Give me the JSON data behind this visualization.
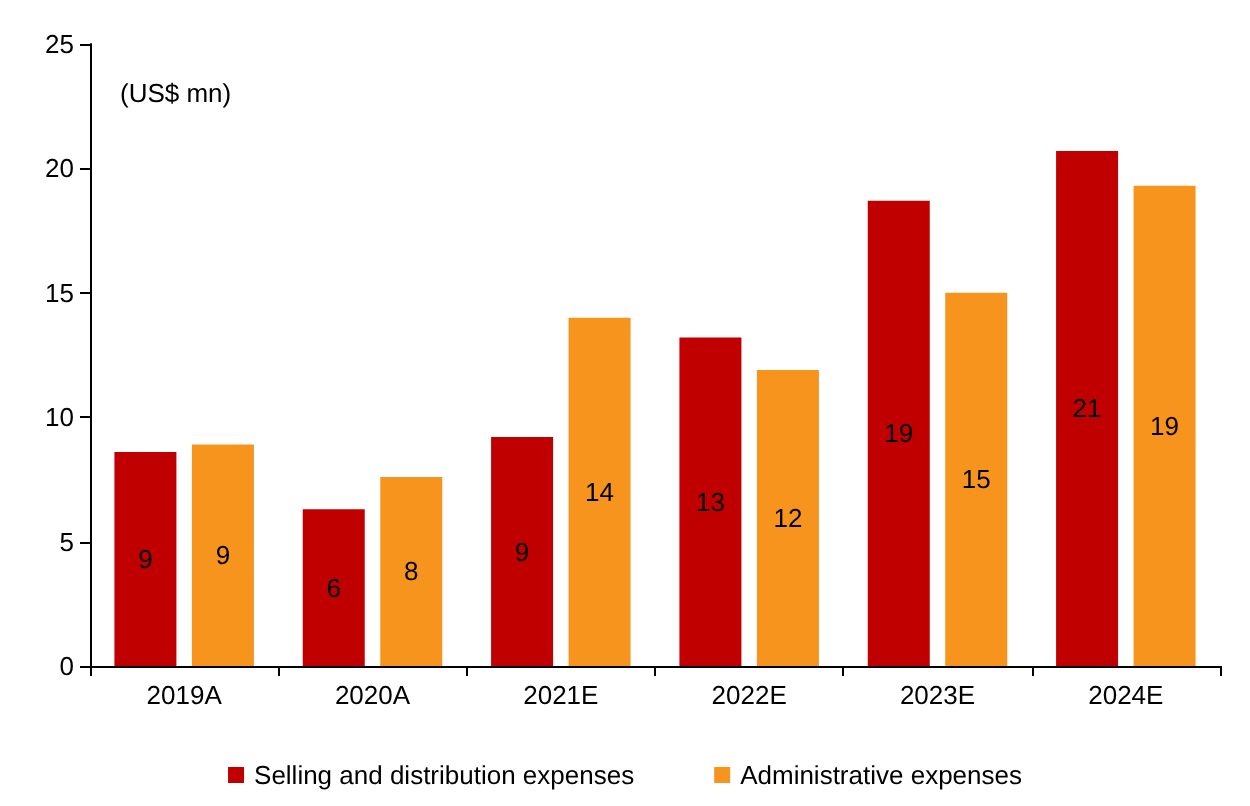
{
  "chart_data": {
    "type": "bar",
    "ylabel": "(US$ mn)",
    "categories": [
      "2019A",
      "2020A",
      "2021E",
      "2022E",
      "2023E",
      "2024E"
    ],
    "series": [
      {
        "name": "Selling and distribution expenses",
        "color": "#c00000",
        "values": [
          8.6,
          6.3,
          9.2,
          13.2,
          18.7,
          20.7
        ],
        "value_labels": [
          "9",
          "6",
          "9",
          "13",
          "19",
          "21"
        ]
      },
      {
        "name": "Administrative expenses",
        "color": "#f7941d",
        "values": [
          8.9,
          7.6,
          14.0,
          11.9,
          15.0,
          19.3
        ],
        "value_labels": [
          "9",
          "8",
          "14",
          "12",
          "15",
          "19"
        ]
      }
    ],
    "ylim": [
      0,
      25
    ],
    "yticks": [
      0,
      5,
      10,
      15,
      20,
      25
    ],
    "grid": false,
    "legend": "bottom"
  }
}
